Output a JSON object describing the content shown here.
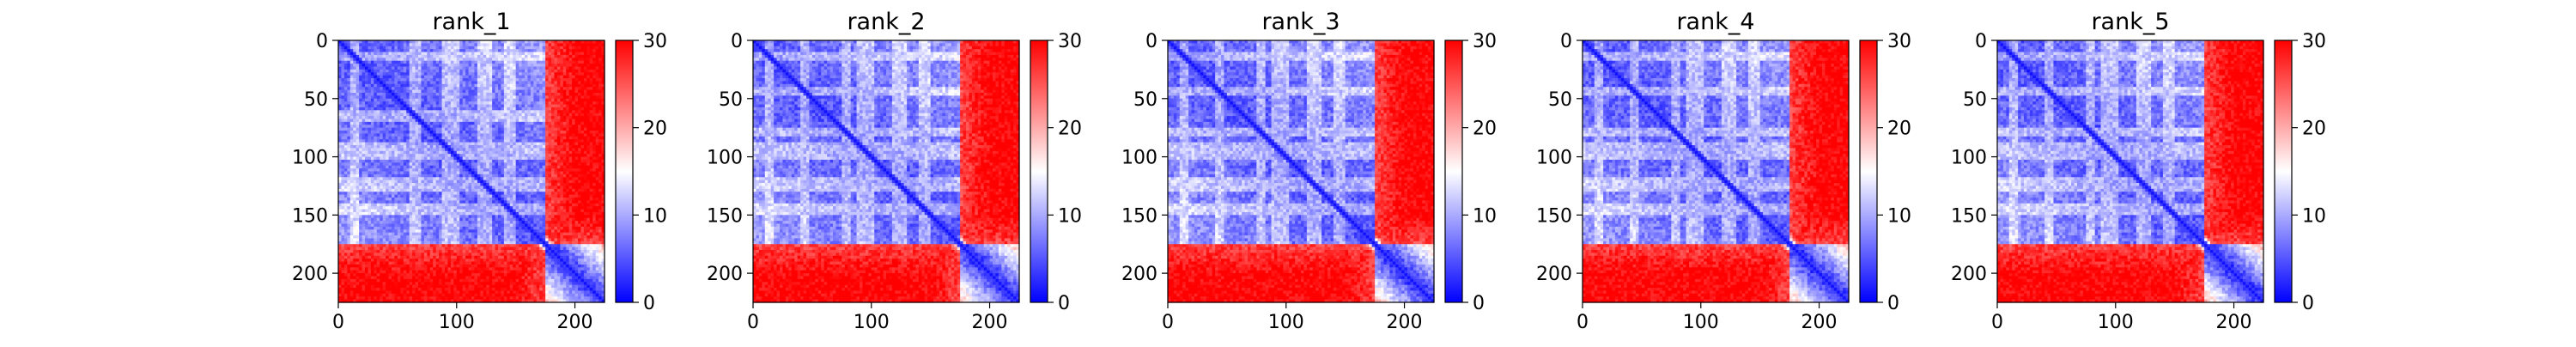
{
  "chart_data": [
    {
      "type": "heatmap",
      "title": "rank_1",
      "xlim": [
        0,
        225
      ],
      "ylim": [
        225,
        0
      ],
      "x_ticks": [
        0,
        100,
        200
      ],
      "y_ticks": [
        0,
        50,
        100,
        150,
        200
      ],
      "x_tick_labels": [
        "0",
        "100",
        "200"
      ],
      "y_tick_labels": [
        "0",
        "50",
        "100",
        "150",
        "200"
      ],
      "colorbar": {
        "range": [
          0,
          30
        ],
        "ticks": [
          0,
          10,
          20,
          30
        ],
        "tick_labels": [
          "0",
          "10",
          "20",
          "30"
        ],
        "colormap": "bwr"
      },
      "structure": {
        "size": 225,
        "blue_block_end": 175,
        "low_bands": [
          [
            10,
            18
          ],
          [
            60,
            70
          ],
          [
            88,
            102
          ],
          [
            118,
            130
          ],
          [
            140,
            150
          ]
        ]
      }
    },
    {
      "type": "heatmap",
      "title": "rank_2",
      "xlim": [
        0,
        225
      ],
      "ylim": [
        225,
        0
      ],
      "x_ticks": [
        0,
        100,
        200
      ],
      "y_ticks": [
        0,
        50,
        100,
        150,
        200
      ],
      "x_tick_labels": [
        "0",
        "100",
        "200"
      ],
      "y_tick_labels": [
        "0",
        "50",
        "100",
        "150",
        "200"
      ],
      "colorbar": {
        "range": [
          0,
          30
        ],
        "ticks": [
          0,
          10,
          20,
          30
        ],
        "tick_labels": [
          "0",
          "10",
          "20",
          "30"
        ],
        "colormap": "bwr"
      },
      "structure": {
        "size": 225,
        "blue_block_end": 175,
        "low_bands": [
          [
            10,
            18
          ],
          [
            40,
            48
          ],
          [
            75,
            83
          ],
          [
            88,
            102
          ],
          [
            118,
            130
          ],
          [
            140,
            150
          ]
        ]
      }
    },
    {
      "type": "heatmap",
      "title": "rank_3",
      "xlim": [
        0,
        225
      ],
      "ylim": [
        225,
        0
      ],
      "x_ticks": [
        0,
        100,
        200
      ],
      "y_ticks": [
        0,
        50,
        100,
        150,
        200
      ],
      "x_tick_labels": [
        "0",
        "100",
        "200"
      ],
      "y_tick_labels": [
        "0",
        "50",
        "100",
        "150",
        "200"
      ],
      "colorbar": {
        "range": [
          0,
          30
        ],
        "ticks": [
          0,
          10,
          20,
          30
        ],
        "tick_labels": [
          "0",
          "10",
          "20",
          "30"
        ],
        "colormap": "bwr"
      },
      "structure": {
        "size": 225,
        "blue_block_end": 175,
        "low_bands": [
          [
            10,
            18
          ],
          [
            40,
            48
          ],
          [
            75,
            83
          ],
          [
            88,
            102
          ],
          [
            118,
            130
          ],
          [
            140,
            150
          ]
        ]
      }
    },
    {
      "type": "heatmap",
      "title": "rank_4",
      "xlim": [
        0,
        225
      ],
      "ylim": [
        225,
        0
      ],
      "x_ticks": [
        0,
        100,
        200
      ],
      "y_ticks": [
        0,
        50,
        100,
        150,
        200
      ],
      "x_tick_labels": [
        "0",
        "100",
        "200"
      ],
      "y_tick_labels": [
        "0",
        "50",
        "100",
        "150",
        "200"
      ],
      "colorbar": {
        "range": [
          0,
          30
        ],
        "ticks": [
          0,
          10,
          20,
          30
        ],
        "tick_labels": [
          "0",
          "10",
          "20",
          "30"
        ],
        "colormap": "bwr"
      },
      "structure": {
        "size": 225,
        "blue_block_end": 175,
        "low_bands": [
          [
            10,
            18
          ],
          [
            40,
            48
          ],
          [
            75,
            83
          ],
          [
            88,
            102
          ],
          [
            118,
            130
          ],
          [
            140,
            150
          ]
        ]
      }
    },
    {
      "type": "heatmap",
      "title": "rank_5",
      "xlim": [
        0,
        225
      ],
      "ylim": [
        225,
        0
      ],
      "x_ticks": [
        0,
        100,
        200
      ],
      "y_ticks": [
        0,
        50,
        100,
        150,
        200
      ],
      "x_tick_labels": [
        "0",
        "100",
        "200"
      ],
      "y_tick_labels": [
        "0",
        "50",
        "100",
        "150",
        "200"
      ],
      "colorbar": {
        "range": [
          0,
          30
        ],
        "ticks": [
          0,
          10,
          20,
          30
        ],
        "tick_labels": [
          "0",
          "10",
          "20",
          "30"
        ],
        "colormap": "bwr"
      },
      "structure": {
        "size": 225,
        "blue_block_end": 175,
        "low_bands": [
          [
            10,
            18
          ],
          [
            40,
            48
          ],
          [
            75,
            83
          ],
          [
            88,
            102
          ],
          [
            118,
            130
          ],
          [
            140,
            150
          ]
        ]
      }
    }
  ],
  "colors": {
    "low": "#0000ff",
    "mid": "#ffffff",
    "high": "#ff0000"
  }
}
